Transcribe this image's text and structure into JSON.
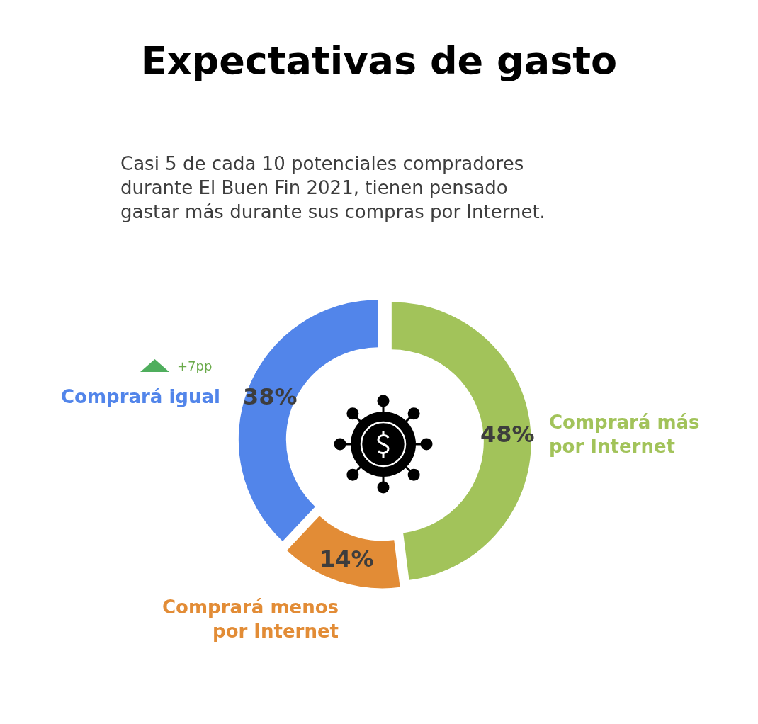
{
  "chart_data": {
    "type": "donut",
    "title": "Expectativas de gasto",
    "subtitle": "Casi 5 de cada 10 potenciales compradores durante El Buen Fin 2021, tienen pensado gastar más durante sus compras por Internet.",
    "categories": [
      "Comprará más por Internet",
      "Comprará menos por Internet",
      "Comprará igual"
    ],
    "values": [
      48,
      14,
      38
    ],
    "colors": [
      "#a2c35a",
      "#e28c36",
      "#5285ea"
    ],
    "value_labels": [
      "48%",
      "14%",
      "38%"
    ],
    "annotations": [
      "+7pp"
    ]
  }
}
